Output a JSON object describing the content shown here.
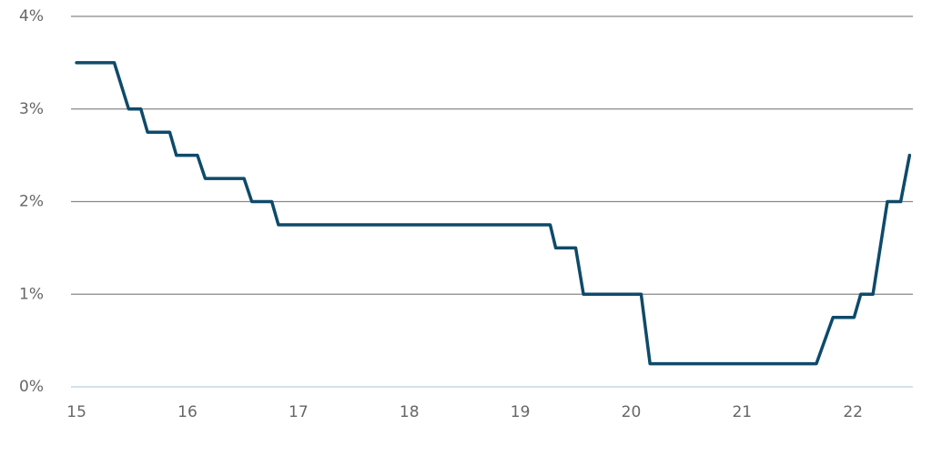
{
  "chart_data": {
    "type": "line",
    "x": [
      15.0,
      15.34,
      15.47,
      15.58,
      15.64,
      15.84,
      15.9,
      16.09,
      16.16,
      16.51,
      16.58,
      16.76,
      16.82,
      19.27,
      19.32,
      19.5,
      19.57,
      20.09,
      20.17,
      21.67,
      21.82,
      22.01,
      22.07,
      22.18,
      22.31,
      22.43,
      22.51
    ],
    "series": [
      {
        "color": "#0e4a6a",
        "values": [
          3.5,
          3.5,
          3.0,
          3.0,
          2.75,
          2.75,
          2.5,
          2.5,
          2.25,
          2.25,
          2.0,
          2.0,
          1.75,
          1.75,
          1.5,
          1.5,
          1.0,
          1.0,
          0.25,
          0.25,
          0.75,
          0.75,
          1.0,
          1.0,
          2.0,
          2.0,
          2.5
        ]
      }
    ],
    "xlim": [
      14.95,
      22.54
    ],
    "xticks": [
      15,
      16,
      17,
      18,
      19,
      20,
      21,
      22
    ],
    "ylim": [
      0,
      4
    ],
    "yticks": [
      {
        "value": 0,
        "label": "0%"
      },
      {
        "value": 1,
        "label": "1%"
      },
      {
        "value": 2,
        "label": "2%"
      },
      {
        "value": 3,
        "label": "3%"
      },
      {
        "value": 4,
        "label": "4%"
      }
    ],
    "grid": true
  }
}
